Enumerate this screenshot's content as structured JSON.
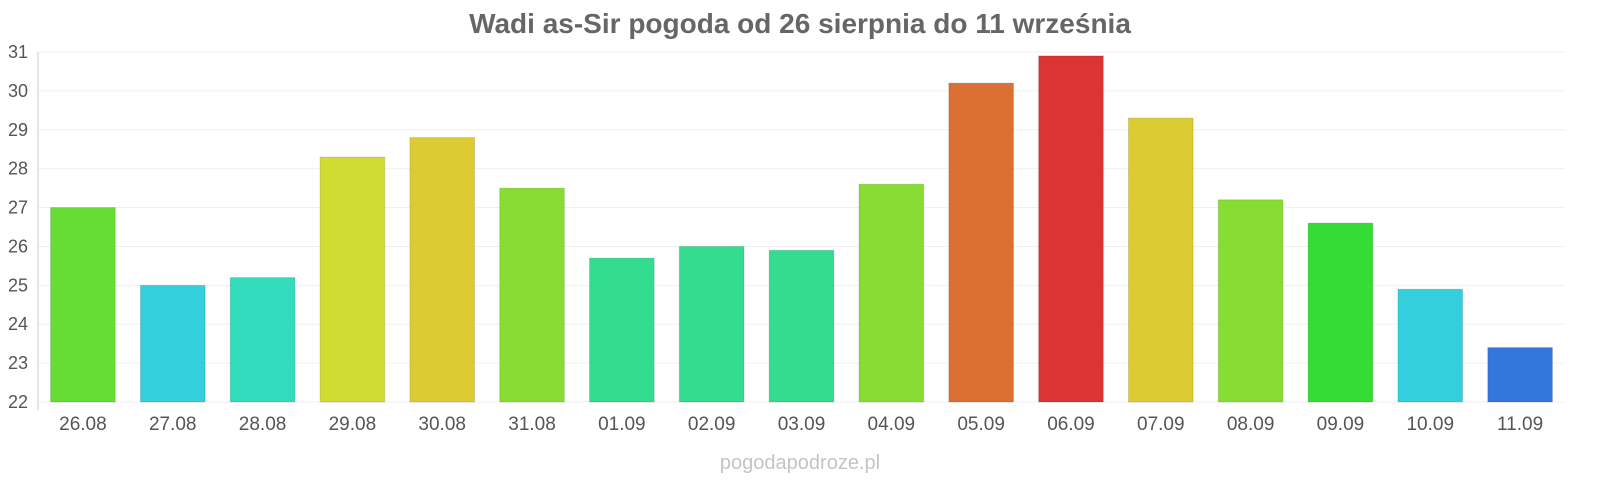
{
  "chart_data": {
    "type": "bar",
    "title": "Wadi as-Sir pogoda od 26 sierpnia do 11 września",
    "xlabel": "",
    "ylabel": "",
    "ylim": [
      22,
      31
    ],
    "yticks": [
      22,
      23,
      24,
      25,
      26,
      27,
      28,
      29,
      30,
      31
    ],
    "grid": true,
    "categories": [
      "26.08",
      "27.08",
      "28.08",
      "29.08",
      "30.08",
      "31.08",
      "01.09",
      "02.09",
      "03.09",
      "04.09",
      "05.09",
      "06.09",
      "07.09",
      "08.09",
      "09.09",
      "10.09",
      "11.09"
    ],
    "values": [
      27.0,
      25.0,
      25.2,
      28.3,
      28.8,
      27.5,
      25.7,
      26.0,
      25.9,
      27.6,
      30.2,
      30.9,
      29.3,
      27.2,
      26.6,
      24.9,
      23.4
    ],
    "colors": [
      "#66dd33",
      "#33cfdc",
      "#33dcbd",
      "#cfdd33",
      "#dccb33",
      "#88dd33",
      "#33dc8e",
      "#33dc8e",
      "#33dc8e",
      "#88dd33",
      "#dc7033",
      "#dc3333",
      "#dccb33",
      "#88dd33",
      "#33dd33",
      "#33cfdc",
      "#3377dc"
    ]
  },
  "watermark": "pogodapodroze.pl"
}
